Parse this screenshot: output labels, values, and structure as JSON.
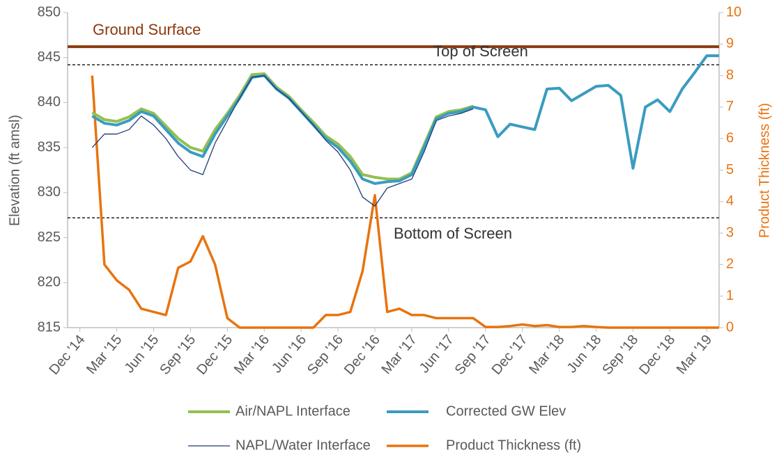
{
  "chart_data": {
    "type": "line",
    "ylabel": "Elevation (ft amsl)",
    "y2label": "Product Thickness (ft)",
    "xlim": [
      "2014-11",
      "2019-04"
    ],
    "xticks": [
      {
        "value": "2014-12",
        "label": "Dec '14"
      },
      {
        "value": "2015-03",
        "label": "Mar '15"
      },
      {
        "value": "2015-06",
        "label": "Jun '15"
      },
      {
        "value": "2015-09",
        "label": "Sep '15"
      },
      {
        "value": "2015-12",
        "label": "Dec '15"
      },
      {
        "value": "2016-03",
        "label": "Mar '16"
      },
      {
        "value": "2016-06",
        "label": "Jun '16"
      },
      {
        "value": "2016-09",
        "label": "Sep '16"
      },
      {
        "value": "2016-12",
        "label": "Dec '16"
      },
      {
        "value": "2017-03",
        "label": "Mar '17"
      },
      {
        "value": "2017-06",
        "label": "Jun '17"
      },
      {
        "value": "2017-09",
        "label": "Sep '17"
      },
      {
        "value": "2017-12",
        "label": "Dec '17"
      },
      {
        "value": "2018-03",
        "label": "Mar '18"
      },
      {
        "value": "2018-06",
        "label": "Jun '18"
      },
      {
        "value": "2018-09",
        "label": "Sep '18"
      },
      {
        "value": "2018-12",
        "label": "Dec '18"
      },
      {
        "value": "2019-03",
        "label": "Mar '19"
      }
    ],
    "ylim": [
      815,
      850
    ],
    "yticks": [
      815,
      820,
      825,
      830,
      835,
      840,
      845,
      850
    ],
    "y2lim": [
      0,
      10
    ],
    "y2ticks": [
      0,
      1,
      2,
      3,
      4,
      5,
      6,
      7,
      8,
      9,
      10
    ],
    "grid": false,
    "legend": "bottom",
    "x": [
      "2015-01",
      "2015-02",
      "2015-03",
      "2015-04",
      "2015-05",
      "2015-06",
      "2015-07",
      "2015-08",
      "2015-09",
      "2015-10",
      "2015-11",
      "2015-12",
      "2016-01",
      "2016-02",
      "2016-03",
      "2016-04",
      "2016-05",
      "2016-06",
      "2016-07",
      "2016-08",
      "2016-09",
      "2016-10",
      "2016-11",
      "2016-12",
      "2017-01",
      "2017-02",
      "2017-03",
      "2017-04",
      "2017-05",
      "2017-06",
      "2017-07",
      "2017-08",
      "2017-09",
      "2017-10",
      "2017-11",
      "2017-12",
      "2018-01",
      "2018-02",
      "2018-03",
      "2018-04",
      "2018-05",
      "2018-06",
      "2018-07",
      "2018-08",
      "2018-09",
      "2018-10",
      "2018-11",
      "2018-12",
      "2019-01",
      "2019-02",
      "2019-03",
      "2019-04"
    ],
    "series": [
      {
        "name": "Air/NAPL Interface",
        "color": "#92c050",
        "width": 4,
        "values": [
          838.9,
          838.1,
          837.9,
          838.4,
          839.3,
          838.8,
          837.4,
          836,
          835,
          834.6,
          837,
          838.8,
          840.8,
          843.1,
          843.2,
          841.7,
          840.7,
          839.2,
          837.8,
          836.3,
          835.4,
          834,
          832,
          831.7,
          831.5,
          831.5,
          832.2,
          835.3,
          838.4,
          839,
          839.2,
          839.6,
          null,
          null,
          null,
          null,
          null,
          null,
          null,
          null,
          null,
          null,
          null,
          null,
          null,
          null,
          null,
          null,
          null,
          null,
          null,
          null
        ]
      },
      {
        "name": "Corrected GW Elev",
        "color": "#3a9cc0",
        "width": 4,
        "values": [
          838.5,
          837.7,
          837.5,
          838,
          839,
          838.5,
          837,
          835.5,
          834.5,
          834,
          836.5,
          838.5,
          840.5,
          842.8,
          843,
          841.5,
          840.5,
          839,
          837.5,
          836,
          835,
          833.5,
          831.5,
          831,
          831.2,
          831.3,
          832,
          835,
          838.2,
          838.8,
          839,
          839.5,
          839.2,
          836.2,
          837.6,
          837.3,
          837,
          841.5,
          841.6,
          840.2,
          841,
          841.8,
          841.9,
          840.8,
          832.7,
          839.5,
          840.3,
          839,
          841.5,
          843.3,
          845.2,
          845.2
        ]
      },
      {
        "name": "NAPL/Water Interface",
        "color": "#1f3b73",
        "width": 1.3,
        "values": [
          835,
          836.5,
          836.5,
          837,
          838.5,
          837.5,
          836,
          834,
          832.5,
          832,
          835.5,
          838,
          840.5,
          842.8,
          843,
          841.5,
          840.5,
          839,
          837.5,
          835.8,
          834.5,
          832.5,
          829.5,
          828.5,
          830.5,
          831,
          831.5,
          834.5,
          838,
          838.5,
          838.8,
          839.3,
          null,
          null,
          null,
          null,
          null,
          null,
          null,
          null,
          null,
          null,
          null,
          null,
          null,
          null,
          null,
          null,
          null,
          null,
          null,
          null
        ]
      },
      {
        "name": "Product Thickness (ft)",
        "color": "#e8730f",
        "width": 3.5,
        "axis": "y2",
        "values": [
          8.0,
          2.0,
          1.5,
          1.2,
          0.6,
          0.5,
          0.4,
          1.9,
          2.1,
          2.9,
          2.0,
          0.3,
          0,
          0,
          0,
          0,
          0,
          0,
          0,
          0.4,
          0.4,
          0.5,
          1.8,
          4.2,
          0.5,
          0.6,
          0.4,
          0.4,
          0.3,
          0.3,
          0.3,
          0.3,
          0.02,
          0.02,
          0.05,
          0.1,
          0.05,
          0.08,
          0.02,
          0.02,
          0.05,
          0.02,
          0,
          0,
          0,
          0,
          0,
          0,
          0,
          0,
          0,
          0
        ]
      }
    ],
    "reference_lines": [
      {
        "label": "Ground Surface",
        "value": 846.2,
        "color": "#8b3a0f",
        "style": "solid"
      },
      {
        "label": "Top of Screen",
        "value": 844.2,
        "color": "#222222",
        "style": "dashed"
      },
      {
        "label": "Bottom of Screen",
        "value": 827.2,
        "color": "#222222",
        "style": "dashed"
      }
    ]
  }
}
